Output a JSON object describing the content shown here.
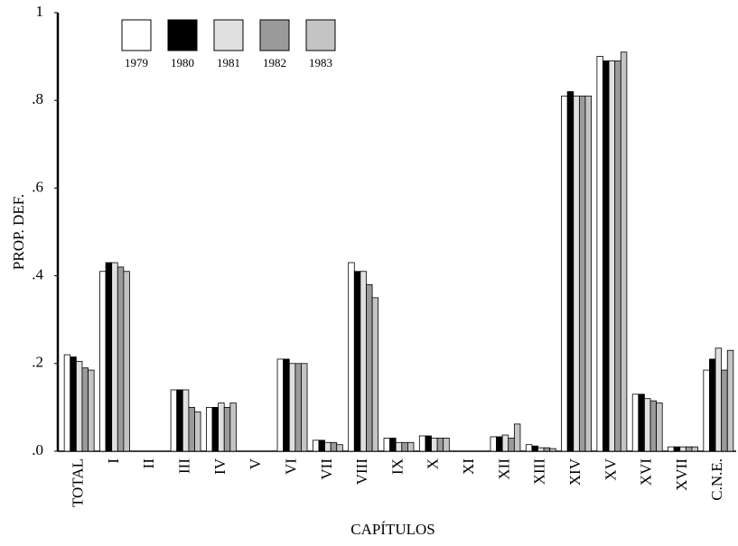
{
  "chart_data": {
    "type": "bar",
    "y_label": "PROP. DEF.",
    "x_label": "CAPÍTULOS",
    "categories": [
      "TOTAL",
      "I",
      "II",
      "III",
      "IV",
      "V",
      "VI",
      "VII",
      "VIII",
      "IX",
      "X",
      "XI",
      "XII",
      "XIII",
      "XIV",
      "XV",
      "XVI",
      "XVII",
      "C.N.E."
    ],
    "series": [
      {
        "name": "1979",
        "color": "#ffffff",
        "values": [
          0.22,
          0.41,
          0,
          0.14,
          0.1,
          0,
          0.21,
          0.025,
          0.43,
          0.03,
          0.035,
          0,
          0.033,
          0.015,
          0.81,
          0.9,
          0.13,
          0.01,
          0.185
        ]
      },
      {
        "name": "1980",
        "color": "#000000",
        "values": [
          0.215,
          0.43,
          0,
          0.14,
          0.1,
          0,
          0.21,
          0.025,
          0.41,
          0.03,
          0.035,
          0,
          0.033,
          0.012,
          0.82,
          0.89,
          0.13,
          0.01,
          0.21
        ]
      },
      {
        "name": "1981",
        "color": "#e0e0e0",
        "values": [
          0.205,
          0.43,
          0,
          0.14,
          0.11,
          0,
          0.2,
          0.02,
          0.41,
          0.02,
          0.03,
          0,
          0.037,
          0.008,
          0.81,
          0.89,
          0.12,
          0.01,
          0.235
        ]
      },
      {
        "name": "1982",
        "color": "#9a9a9a",
        "values": [
          0.19,
          0.42,
          0,
          0.1,
          0.1,
          0,
          0.2,
          0.02,
          0.38,
          0.02,
          0.03,
          0,
          0.03,
          0.008,
          0.81,
          0.89,
          0.115,
          0.01,
          0.185
        ]
      },
      {
        "name": "1983",
        "color": "#c4c4c4",
        "values": [
          0.185,
          0.41,
          0,
          0.09,
          0.11,
          0,
          0.2,
          0.015,
          0.35,
          0.02,
          0.03,
          0,
          0.062,
          0.006,
          0.81,
          0.91,
          0.11,
          0.01,
          0.23
        ]
      }
    ],
    "ylim": [
      0,
      1
    ],
    "yticks": [
      {
        "value": 0,
        "label": ".0"
      },
      {
        "value": 0.2,
        "label": ".2"
      },
      {
        "value": 0.4,
        "label": ".4"
      },
      {
        "value": 0.6,
        "label": ".6"
      },
      {
        "value": 0.8,
        "label": ".8"
      },
      1
    ]
  }
}
